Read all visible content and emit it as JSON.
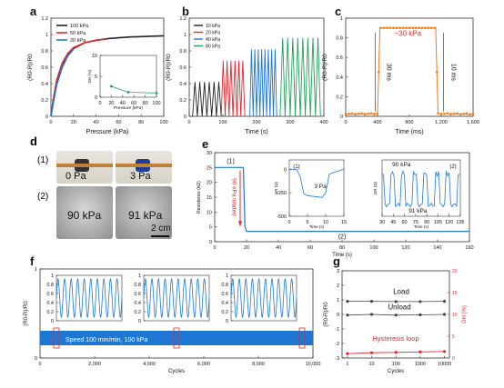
{
  "panels": {
    "a": {
      "letter": "a"
    },
    "b": {
      "letter": "b"
    },
    "c": {
      "letter": "c"
    },
    "d": {
      "letter": "d",
      "sub1": "(1)",
      "sub2": "(2)",
      "photo_labels": [
        "0 Pa",
        "3 Pa",
        "90 kPa",
        "91 kPa"
      ],
      "scale_bar": "2 cm"
    },
    "e": {
      "letter": "e"
    },
    "f": {
      "letter": "f"
    },
    "g": {
      "letter": "g"
    }
  },
  "colors": {
    "blue": "#1f77d4",
    "red": "#e0282e",
    "black": "#222222",
    "orange": "#f07a1a",
    "green": "#22a05a",
    "gray": "#555555"
  },
  "chart_data": [
    {
      "id": "a",
      "type": "line",
      "xlabel": "Pressure (kPa)",
      "ylabel": "(R0-R)/R0",
      "xlim": [
        0,
        100
      ],
      "ylim": [
        0,
        1.2
      ],
      "xticks": [
        0,
        20,
        40,
        60,
        80,
        100
      ],
      "yticks": [
        0.0,
        0.2,
        0.4,
        0.6,
        0.8,
        1.0,
        1.2
      ],
      "legend": "top-left",
      "series": [
        {
          "name": "100 kPa",
          "color": "#222222",
          "x": [
            0,
            2,
            5,
            10,
            15,
            20,
            30,
            40,
            50,
            60,
            70,
            80,
            90,
            100
          ],
          "y": [
            0,
            0.18,
            0.42,
            0.64,
            0.76,
            0.83,
            0.9,
            0.93,
            0.95,
            0.96,
            0.97,
            0.975,
            0.98,
            0.985
          ]
        },
        {
          "name": "50 kPa",
          "color": "#e0282e",
          "x": [
            0,
            2,
            5,
            10,
            15,
            20,
            30,
            40,
            50
          ],
          "y": [
            0,
            0.2,
            0.44,
            0.65,
            0.77,
            0.84,
            0.9,
            0.93,
            0.945
          ]
        },
        {
          "name": "20 kPa",
          "color": "#1f77d4",
          "x": [
            0,
            2,
            5,
            10,
            15,
            20
          ],
          "y": [
            0,
            0.16,
            0.38,
            0.6,
            0.74,
            0.82
          ]
        }
      ],
      "inset": {
        "xlabel": "Pressure (kPa)",
        "ylabel": "DH (%)",
        "xlim": [
          0,
          100
        ],
        "ylim": [
          0,
          10
        ],
        "xticks": [
          0,
          20,
          40,
          60,
          80,
          100
        ],
        "yticks": [
          0,
          5,
          10
        ],
        "x": [
          20,
          50,
          100
        ],
        "y": [
          2.6,
          1.2,
          1.0
        ],
        "color": "#22a05a"
      }
    },
    {
      "id": "b",
      "type": "line",
      "xlabel": "Time (s)",
      "ylabel": "(R0-R)/R0",
      "xlim": [
        0,
        400
      ],
      "ylim": [
        0,
        1.2
      ],
      "xticks": [
        0,
        100,
        200,
        300,
        400
      ],
      "yticks": [
        0.0,
        0.2,
        0.4,
        0.6,
        0.8,
        1.0,
        1.2
      ],
      "legend": "top-left",
      "series": [
        {
          "name": "10 kPa",
          "color": "#222222",
          "t_start": 10,
          "t_end": 95,
          "cycles": 6,
          "amplitude": 0.42
        },
        {
          "name": "20 kPa",
          "color": "#e0282e",
          "t_start": 95,
          "t_end": 165,
          "cycles": 6,
          "amplitude": 0.68
        },
        {
          "name": "40 kPa",
          "color": "#1f77d4",
          "t_start": 180,
          "t_end": 260,
          "cycles": 8,
          "amplitude": 0.82
        },
        {
          "name": "80 kPa",
          "color": "#22a05a",
          "t_start": 270,
          "t_end": 390,
          "cycles": 8,
          "amplitude": 0.96
        }
      ]
    },
    {
      "id": "c",
      "type": "line",
      "xlabel": "Time (ms)",
      "ylabel": "(R0-R)/R0",
      "xlim": [
        0,
        1600
      ],
      "ylim": [
        0,
        1.0
      ],
      "xticks": [
        0,
        400,
        800,
        1200,
        1600
      ],
      "xtick_labels": [
        "0",
        "400",
        "800",
        "1,200",
        "1,600"
      ],
      "yticks": [
        0.0,
        0.2,
        0.4,
        0.6,
        0.8,
        1.0
      ],
      "series": [
        {
          "name": "",
          "color": "#f07a1a",
          "x": [
            0,
            400,
            430,
            1130,
            1160,
            1600
          ],
          "y": [
            0.02,
            0.03,
            0.9,
            0.9,
            0.03,
            0.02
          ]
        }
      ],
      "annotations": [
        "~30 kPa",
        "30 ms",
        "10 ms"
      ]
    },
    {
      "id": "e",
      "type": "line",
      "xlabel": "Time (s)",
      "ylabel": "Resistance (kΩ)",
      "xlim": [
        0,
        160
      ],
      "ylim": [
        0,
        30
      ],
      "xticks": [
        0,
        20,
        40,
        60,
        80,
        100,
        120,
        140,
        160
      ],
      "yticks": [
        0,
        5,
        10,
        15,
        20,
        25,
        30
      ],
      "series": [
        {
          "name": "",
          "color": "#1f77d4",
          "x": [
            0,
            18,
            19,
            20,
            160
          ],
          "y": [
            25,
            25,
            5,
            3.5,
            3.5
          ]
        }
      ],
      "annotations": [
        "(1)",
        "90 kPa loaded",
        "(2)"
      ],
      "inset1": {
        "label": "(1)",
        "xlabel": "Time (s)",
        "ylabel": "ΔR (Ω)",
        "xlim": [
          0,
          15
        ],
        "ylim": [
          -500,
          100
        ],
        "xticks": [
          0,
          5,
          10,
          15
        ],
        "yticks": [
          -500,
          -250,
          0
        ],
        "annotation": "3 Pa",
        "x": [
          0,
          2,
          3,
          4,
          5,
          9,
          10,
          11,
          15
        ],
        "y": [
          0,
          0,
          -80,
          -260,
          -280,
          -300,
          -250,
          -50,
          0
        ]
      },
      "inset2": {
        "label": "(2)",
        "xlabel": "Time (s)",
        "ylabel": "ΔR (Ω)",
        "xlim": [
          30,
          135
        ],
        "ylim": [
          -50,
          40
        ],
        "xticks": [
          30,
          45,
          60,
          75,
          90,
          105,
          120,
          135
        ],
        "annotations": [
          "90 kPa",
          "91 kPa"
        ]
      }
    },
    {
      "id": "f",
      "type": "line",
      "xlabel": "Cycles",
      "ylabel": "(R0-R)/R0",
      "xlim": [
        0,
        10000
      ],
      "ylim": [
        0,
        1
      ],
      "xticks": [
        0,
        2000,
        4000,
        6000,
        8000,
        10000
      ],
      "xtick_labels": [
        "0",
        "2,000",
        "4,000",
        "6,000",
        "8,000",
        "10,000"
      ],
      "yticks": [
        0,
        1
      ],
      "color": "#1f77d4",
      "annotation": "Speed 100 mm/min, 100 kPa",
      "insets": [
        {
          "xlim": [
            0,
            10
          ],
          "ylim": [
            0,
            1
          ],
          "cycles": 10
        },
        {
          "xlim": [
            0,
            10
          ],
          "ylim": [
            0,
            1
          ],
          "cycles": 10
        },
        {
          "xlim": [
            0,
            10
          ],
          "ylim": [
            0,
            1
          ],
          "cycles": 10
        }
      ],
      "inset_yticks": [
        0.0,
        0.2,
        0.4,
        0.6,
        0.8,
        1.0
      ]
    },
    {
      "id": "g",
      "type": "line",
      "xlabel": "Cycles",
      "ylabel": "(R0-R)/R0",
      "y2label": "DH (%)",
      "xscale": "log",
      "xticks": [
        1,
        10,
        100,
        1000,
        10000
      ],
      "ylim": [
        -3,
        3
      ],
      "yticks": [
        -3,
        -2,
        -1,
        0,
        1,
        2,
        3
      ],
      "y2lim": [
        0,
        20
      ],
      "y2ticks": [
        0,
        5,
        10,
        15,
        20
      ],
      "series": [
        {
          "name": "Load",
          "color": "#444444",
          "x": [
            1,
            10,
            100,
            1000,
            10000
          ],
          "y": [
            0.9,
            0.9,
            0.88,
            0.88,
            0.9
          ],
          "axis": "left"
        },
        {
          "name": "Unload",
          "color": "#444444",
          "x": [
            1,
            10,
            100,
            1000,
            10000
          ],
          "y": [
            -0.05,
            0.0,
            -0.05,
            -0.03,
            0.0
          ],
          "axis": "left"
        },
        {
          "name": "Hysteresis loop",
          "color": "#e0282e",
          "x": [
            1,
            10,
            100,
            1000,
            10000
          ],
          "y": [
            1.0,
            1.2,
            1.3,
            1.4,
            1.5
          ],
          "axis": "right"
        }
      ]
    }
  ]
}
